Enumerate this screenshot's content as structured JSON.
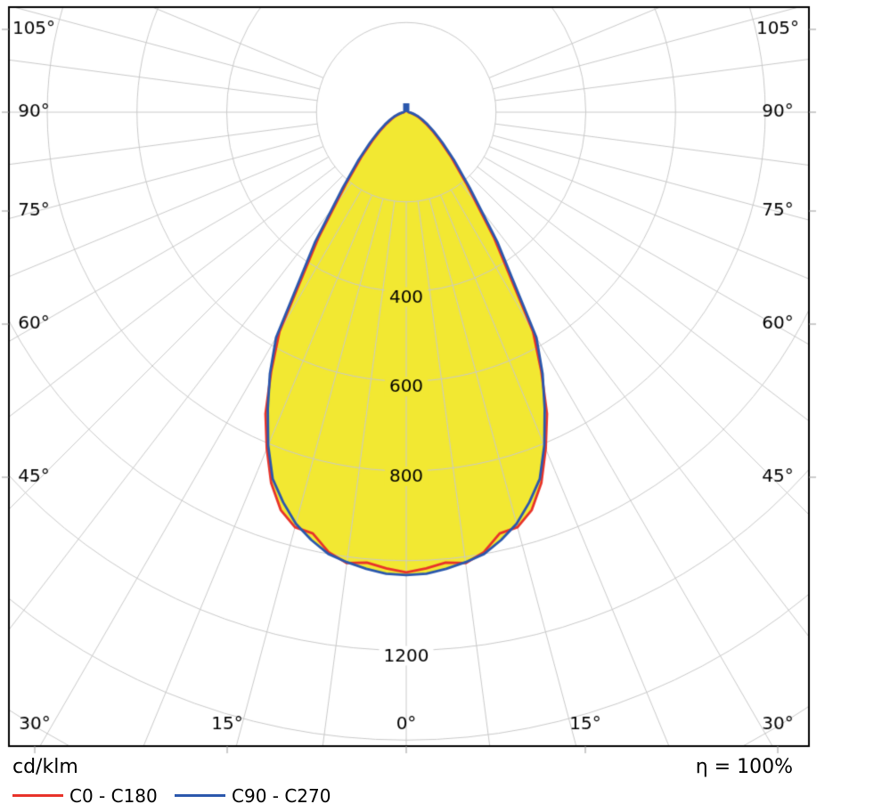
{
  "chart_data": {
    "type": "polar",
    "description": "Luminous intensity distribution curve (photometric polar diagram)",
    "unit_label": "cd/klm",
    "efficiency_label": "η = 100%",
    "gamma_deg": [
      0,
      2.5,
      5,
      7.5,
      10,
      12.5,
      15,
      17.5,
      20,
      22.5,
      25,
      27.5,
      30,
      35,
      40,
      45,
      50,
      55,
      60,
      65,
      70,
      75,
      80,
      85
    ],
    "series": [
      {
        "name": "C0 - C180",
        "color": "#e8332a",
        "values": [
          1026,
          1018,
          1008,
          1014,
          996,
          962,
          958,
          930,
          880,
          812,
          742,
          652,
          565,
          340,
          210,
          142,
          98,
          70,
          50,
          36,
          26,
          17,
          11,
          6
        ]
      },
      {
        "name": "C90 - C270",
        "color": "#2b58ad",
        "values": [
          1032,
          1030,
          1022,
          1012,
          1000,
          977,
          950,
          912,
          870,
          804,
          730,
          658,
          580,
          355,
          220,
          150,
          105,
          75,
          55,
          40,
          29,
          20,
          13,
          8
        ]
      }
    ],
    "rings": [
      200,
      400,
      600,
      800,
      1000,
      1200,
      1400,
      1600
    ],
    "ring_labels": [
      "400",
      "600",
      "800",
      "1200"
    ],
    "ring_label_values": [
      400,
      600,
      800,
      1200
    ],
    "angle_labels_side": [
      "105°",
      "90°",
      "75°",
      "60°",
      "45°"
    ],
    "angle_labels_side_deg": [
      105,
      90,
      75,
      60,
      45
    ],
    "angle_labels_bottom": [
      "30°",
      "15°",
      "0°",
      "15°",
      "30°"
    ],
    "angle_labels_bottom_deg": [
      -30,
      -15,
      0,
      15,
      30
    ],
    "grid_spoke_step_deg": 7.5,
    "units_per_ring": 200,
    "fill_color": "#f2e832",
    "grid_color": "#c9c9c9",
    "border_color": "#000000",
    "label_color": "#000000",
    "marker_at_90": {
      "series": "C90 - C270",
      "color": "#2b58ad"
    }
  }
}
